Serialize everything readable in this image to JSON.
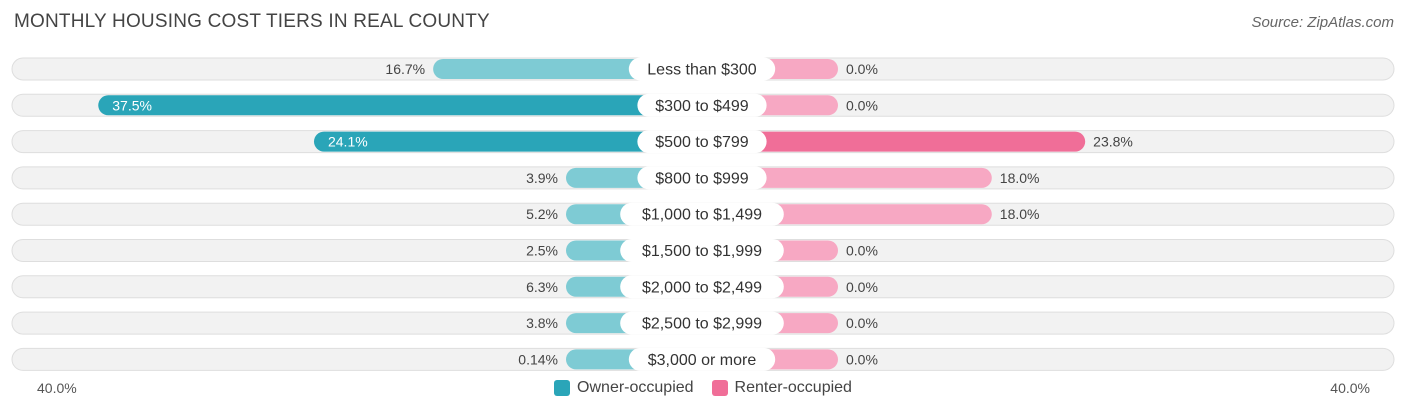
{
  "header": {
    "title": "MONTHLY HOUSING COST TIERS IN REAL COUNTY",
    "source": "Source: ZipAtlas.com"
  },
  "axis": {
    "left_label": "40.0%",
    "right_label": "40.0%"
  },
  "legend": {
    "owner_label": "Owner-occupied",
    "renter_label": "Renter-occupied"
  },
  "colors": {
    "owner_strong": "#2aa5b8",
    "owner_light": "#7ecbd4",
    "renter_strong": "#f06e98",
    "renter_light": "#f7a8c3",
    "row_bg": "#f2f2f2",
    "row_border": "#dedede"
  },
  "chart_data": {
    "type": "bar",
    "title": "MONTHLY HOUSING COST TIERS IN REAL COUNTY",
    "orientation": "diverging-horizontal",
    "xlim": [
      -40,
      40
    ],
    "categories": [
      "Less than $300",
      "$300 to $499",
      "$500 to $799",
      "$800 to $999",
      "$1,000 to $1,499",
      "$1,500 to $1,999",
      "$2,000 to $2,499",
      "$2,500 to $2,999",
      "$3,000 or more"
    ],
    "series": [
      {
        "name": "Owner-occupied",
        "values": [
          16.7,
          37.5,
          24.1,
          3.9,
          5.2,
          2.5,
          6.3,
          3.8,
          0.14
        ],
        "labels": [
          "16.7%",
          "37.5%",
          "24.1%",
          "3.9%",
          "5.2%",
          "2.5%",
          "6.3%",
          "3.8%",
          "0.14%"
        ]
      },
      {
        "name": "Renter-occupied",
        "values": [
          0.0,
          0.0,
          23.8,
          18.0,
          18.0,
          0.0,
          0.0,
          0.0,
          0.0
        ],
        "labels": [
          "0.0%",
          "0.0%",
          "23.8%",
          "18.0%",
          "18.0%",
          "0.0%",
          "0.0%",
          "0.0%",
          "0.0%"
        ]
      }
    ],
    "legend_position": "bottom-center"
  }
}
